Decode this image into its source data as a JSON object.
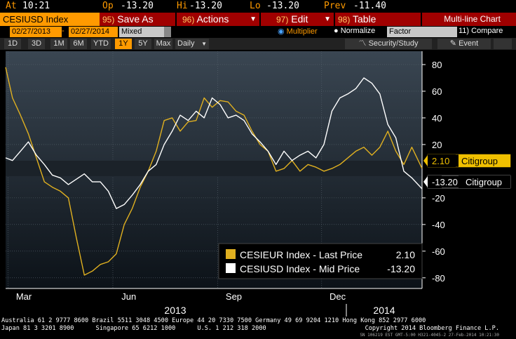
{
  "quote": {
    "at_label": "At",
    "at_value": "10:21",
    "op_label": "Op",
    "op_value": "-13.20",
    "hi_label": "Hi",
    "hi_value": "-13.20",
    "lo_label": "Lo",
    "lo_value": "-13.20",
    "prev_label": "Prev",
    "prev_value": "-11.40"
  },
  "toolbar": {
    "ticker": "CESIUSD Index",
    "save_num": "95)",
    "save_label": "Save As",
    "actions_num": "96)",
    "actions_label": "Actions",
    "edit_num": "97)",
    "edit_label": "Edit",
    "table_num": "98)",
    "table_label": "Table",
    "chart_title": "Multi-line Chart"
  },
  "controls": {
    "start_date": "02/27/2013",
    "date_sep": "-",
    "end_date": "02/27/2014",
    "mode": "Mixed",
    "multiplier_label": "Multiplier",
    "normalize_label": "Normalize",
    "factor_value": "Factor",
    "compare_num": "11)",
    "compare_label": "Compare"
  },
  "periods": [
    "1D",
    "3D",
    "1M",
    "6M",
    "YTD",
    "1Y",
    "5Y",
    "Max"
  ],
  "active_period": "1Y",
  "frequency": "Daily",
  "security_study_label": "Security/Study",
  "event_label": "Event",
  "colors": {
    "bloomberg_orange": "#ff9a00",
    "eur_series": "#e0b020",
    "usd_series": "#ffffff",
    "toolbar_red": "#a00000"
  },
  "chart_data": {
    "type": "line",
    "x_ticks": [
      "Mar",
      "Jun",
      "Sep",
      "Dec"
    ],
    "year_labels": [
      "2013",
      "2014"
    ],
    "y_ticks": [
      80,
      60,
      40,
      20,
      -20,
      -40,
      -60,
      -80
    ],
    "ylim": [
      -88,
      90
    ],
    "xlim": [
      "2013-02-27",
      "2014-02-27"
    ],
    "series": [
      {
        "name": "CESIEUR Index - Last Price",
        "legend_value": "2.10",
        "tag_value": "2.10",
        "tag_label": "Citigroup",
        "color": "#e0b020",
        "points": [
          [
            "2013-02-27",
            78
          ],
          [
            "2013-03-05",
            55
          ],
          [
            "2013-03-12",
            42
          ],
          [
            "2013-03-19",
            28
          ],
          [
            "2013-03-26",
            10
          ],
          [
            "2013-04-02",
            -8
          ],
          [
            "2013-04-09",
            -12
          ],
          [
            "2013-04-16",
            -15
          ],
          [
            "2013-04-23",
            -20
          ],
          [
            "2013-04-30",
            -50
          ],
          [
            "2013-05-07",
            -78
          ],
          [
            "2013-05-14",
            -75
          ],
          [
            "2013-05-21",
            -70
          ],
          [
            "2013-05-28",
            -68
          ],
          [
            "2013-06-04",
            -62
          ],
          [
            "2013-06-11",
            -40
          ],
          [
            "2013-06-18",
            -28
          ],
          [
            "2013-06-25",
            -12
          ],
          [
            "2013-07-02",
            0
          ],
          [
            "2013-07-09",
            15
          ],
          [
            "2013-07-16",
            38
          ],
          [
            "2013-07-23",
            40
          ],
          [
            "2013-07-30",
            30
          ],
          [
            "2013-08-06",
            37
          ],
          [
            "2013-08-13",
            38
          ],
          [
            "2013-08-20",
            55
          ],
          [
            "2013-08-27",
            48
          ],
          [
            "2013-09-03",
            53
          ],
          [
            "2013-09-10",
            52
          ],
          [
            "2013-09-17",
            45
          ],
          [
            "2013-09-24",
            42
          ],
          [
            "2013-10-01",
            30
          ],
          [
            "2013-10-08",
            20
          ],
          [
            "2013-10-15",
            15
          ],
          [
            "2013-10-22",
            0
          ],
          [
            "2013-10-29",
            2
          ],
          [
            "2013-11-05",
            8
          ],
          [
            "2013-11-12",
            0
          ],
          [
            "2013-11-19",
            5
          ],
          [
            "2013-11-26",
            3
          ],
          [
            "2013-12-03",
            0
          ],
          [
            "2013-12-10",
            2
          ],
          [
            "2013-12-17",
            5
          ],
          [
            "2013-12-24",
            10
          ],
          [
            "2013-12-31",
            15
          ],
          [
            "2014-01-07",
            18
          ],
          [
            "2014-01-14",
            12
          ],
          [
            "2014-01-21",
            18
          ],
          [
            "2014-01-28",
            30
          ],
          [
            "2014-02-04",
            15
          ],
          [
            "2014-02-11",
            5
          ],
          [
            "2014-02-18",
            18
          ],
          [
            "2014-02-27",
            2.1
          ]
        ]
      },
      {
        "name": "CESIUSD Index - Mid Price",
        "legend_value": "-13.20",
        "tag_value": "-13.20",
        "tag_label": "Citigroup",
        "color": "#ffffff",
        "points": [
          [
            "2013-02-27",
            10
          ],
          [
            "2013-03-05",
            8
          ],
          [
            "2013-03-12",
            15
          ],
          [
            "2013-03-19",
            22
          ],
          [
            "2013-03-26",
            12
          ],
          [
            "2013-04-02",
            5
          ],
          [
            "2013-04-09",
            -3
          ],
          [
            "2013-04-16",
            -5
          ],
          [
            "2013-04-23",
            -10
          ],
          [
            "2013-04-30",
            -6
          ],
          [
            "2013-05-07",
            -2
          ],
          [
            "2013-05-14",
            -8
          ],
          [
            "2013-05-21",
            -8
          ],
          [
            "2013-05-28",
            -15
          ],
          [
            "2013-06-04",
            -28
          ],
          [
            "2013-06-11",
            -25
          ],
          [
            "2013-06-18",
            -18
          ],
          [
            "2013-06-25",
            -10
          ],
          [
            "2013-07-02",
            0
          ],
          [
            "2013-07-09",
            5
          ],
          [
            "2013-07-16",
            20
          ],
          [
            "2013-07-23",
            30
          ],
          [
            "2013-07-30",
            42
          ],
          [
            "2013-08-06",
            38
          ],
          [
            "2013-08-13",
            45
          ],
          [
            "2013-08-20",
            40
          ],
          [
            "2013-08-27",
            55
          ],
          [
            "2013-09-03",
            50
          ],
          [
            "2013-09-10",
            40
          ],
          [
            "2013-09-17",
            42
          ],
          [
            "2013-09-24",
            38
          ],
          [
            "2013-10-01",
            28
          ],
          [
            "2013-10-08",
            22
          ],
          [
            "2013-10-15",
            15
          ],
          [
            "2013-10-22",
            5
          ],
          [
            "2013-10-29",
            15
          ],
          [
            "2013-11-05",
            8
          ],
          [
            "2013-11-12",
            12
          ],
          [
            "2013-11-19",
            15
          ],
          [
            "2013-11-26",
            10
          ],
          [
            "2013-12-03",
            20
          ],
          [
            "2013-12-10",
            45
          ],
          [
            "2013-12-17",
            55
          ],
          [
            "2013-12-24",
            58
          ],
          [
            "2013-12-31",
            62
          ],
          [
            "2014-01-07",
            70
          ],
          [
            "2014-01-14",
            66
          ],
          [
            "2014-01-21",
            58
          ],
          [
            "2014-01-28",
            35
          ],
          [
            "2014-02-04",
            25
          ],
          [
            "2014-02-11",
            0
          ],
          [
            "2014-02-18",
            -5
          ],
          [
            "2014-02-27",
            -13.2
          ]
        ]
      }
    ]
  },
  "footer": {
    "line1": "Australia 61 2 9777 8600 Brazil 5511 3048 4500 Europe 44 20 7330 7500 Germany 49 69 9204 1210 Hong Kong 852 2977 6000",
    "line2_left": "Japan 81 3 3201 8900      Singapore 65 6212 1000      U.S. 1 212 318 2000",
    "line2_right": "Copyright 2014 Bloomberg Finance L.P.",
    "session": "SN 106219 EST GMT-5:00 H321-4045-2 27-Feb-2014 10:21:30"
  }
}
